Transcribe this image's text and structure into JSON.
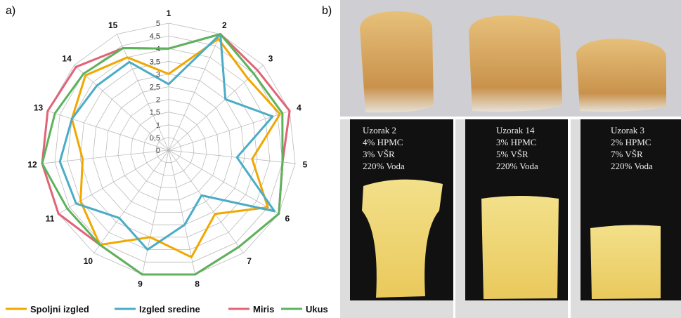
{
  "panel_a": "a)",
  "chart_data": {
    "type": "radar",
    "categories": [
      "1",
      "2",
      "3",
      "4",
      "5",
      "6",
      "7",
      "8",
      "9",
      "10",
      "11",
      "12",
      "13",
      "14",
      "15"
    ],
    "ylim": [
      0,
      5
    ],
    "yticks": [
      0,
      {
        "value": 0.5,
        "label": "0,5"
      },
      1,
      {
        "value": 1.5,
        "label": "1,5"
      },
      2,
      {
        "value": 2.5,
        "label": "2,5"
      },
      3,
      {
        "value": 3.5,
        "label": "3,5"
      },
      4,
      {
        "value": 4.5,
        "label": "4,5"
      },
      5
    ],
    "grid": true,
    "series": [
      {
        "name": "Spoljni izgled",
        "color": "#f0a800",
        "values": [
          3,
          4.8,
          4.2,
          4.6,
          3.3,
          4.5,
          3.1,
          4.3,
          3.5,
          4.6,
          4.0,
          3.4,
          4.0,
          4.4,
          4.0
        ]
      },
      {
        "name": "Izgled sredine",
        "color": "#4bacc6",
        "values": [
          2.6,
          5,
          3,
          4.3,
          2.7,
          4.8,
          2.2,
          3.0,
          4.0,
          3.3,
          4.2,
          4.3,
          4.0,
          3.8,
          3.8
        ]
      },
      {
        "name": "Miris",
        "color": "#e06377",
        "values": [
          4,
          5,
          4.7,
          5,
          4.5,
          5,
          4.7,
          5,
          5,
          4.6,
          5,
          5,
          5,
          4.9,
          4.4
        ]
      },
      {
        "name": "Ukus",
        "color": "#5cb35c",
        "values": [
          4,
          5,
          4.5,
          4.7,
          4.5,
          5,
          4.7,
          5,
          5,
          4.6,
          4.6,
          5,
          4.7,
          4.5,
          4.4
        ]
      }
    ],
    "legend": "bottom"
  },
  "panel_b": "b)",
  "samples": [
    {
      "lines": [
        "Uzorak 2",
        "4% HPMC",
        "3% VŠR",
        "220% Voda"
      ]
    },
    {
      "lines": [
        "Uzorak 14",
        "3% HPMC",
        "5% VŠR",
        "220% Voda"
      ]
    },
    {
      "lines": [
        "Uzorak 3",
        "2% HPMC",
        "7% VŠR",
        "220% Voda"
      ]
    }
  ]
}
